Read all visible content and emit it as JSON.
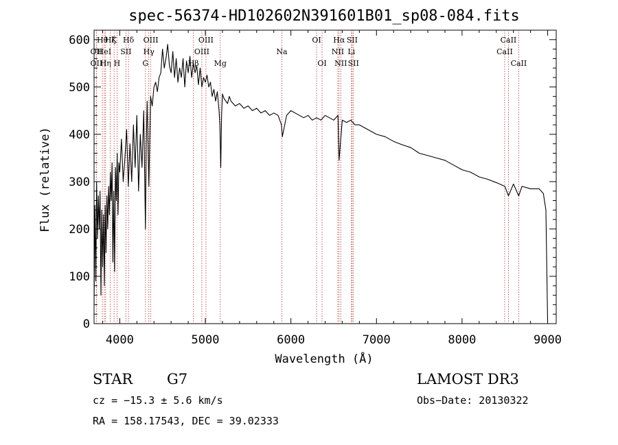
{
  "chart_data": {
    "type": "line",
    "title": "spec-56374-HD102602N391601B01_sp08-084.fits",
    "xlabel": "Wavelength (Å)",
    "ylabel": "Flux (relative)",
    "xlim": [
      3700,
      9100
    ],
    "ylim": [
      0,
      620
    ],
    "xticks": [
      4000,
      5000,
      6000,
      7000,
      8000,
      9000
    ],
    "xtick_labels": [
      "4000",
      "5000",
      "6000",
      "7000",
      "8000",
      "9000"
    ],
    "yticks": [
      0,
      100,
      200,
      300,
      400,
      500,
      600
    ],
    "ytick_labels": [
      "0",
      "100",
      "200",
      "300",
      "400",
      "500",
      "600"
    ],
    "series": [
      {
        "name": "spectrum",
        "x": [
          3700,
          3710,
          3720,
          3730,
          3740,
          3750,
          3760,
          3770,
          3780,
          3790,
          3800,
          3810,
          3820,
          3830,
          3840,
          3850,
          3860,
          3870,
          3880,
          3890,
          3900,
          3910,
          3920,
          3930,
          3940,
          3950,
          3960,
          3970,
          3980,
          3990,
          4000,
          4020,
          4040,
          4060,
          4080,
          4100,
          4120,
          4140,
          4160,
          4180,
          4200,
          4220,
          4240,
          4260,
          4280,
          4300,
          4310,
          4320,
          4340,
          4360,
          4380,
          4400,
          4420,
          4440,
          4460,
          4480,
          4500,
          4520,
          4540,
          4560,
          4580,
          4600,
          4620,
          4640,
          4660,
          4680,
          4700,
          4720,
          4740,
          4760,
          4780,
          4800,
          4820,
          4840,
          4860,
          4880,
          4900,
          4920,
          4940,
          4960,
          4980,
          5000,
          5020,
          5040,
          5060,
          5080,
          5100,
          5120,
          5140,
          5160,
          5170,
          5180,
          5190,
          5200,
          5220,
          5240,
          5260,
          5280,
          5300,
          5350,
          5400,
          5450,
          5500,
          5550,
          5600,
          5650,
          5700,
          5750,
          5800,
          5850,
          5890,
          5900,
          5950,
          6000,
          6050,
          6100,
          6150,
          6200,
          6250,
          6300,
          6350,
          6400,
          6450,
          6500,
          6550,
          6563,
          6600,
          6650,
          6700,
          6750,
          6800,
          6900,
          7000,
          7100,
          7200,
          7300,
          7400,
          7500,
          7600,
          7700,
          7800,
          7900,
          8000,
          8100,
          8200,
          8300,
          8400,
          8500,
          8542,
          8600,
          8662,
          8700,
          8800,
          8900,
          8950,
          8980,
          9000
        ],
        "y": [
          40,
          250,
          90,
          300,
          180,
          270,
          200,
          280,
          60,
          240,
          120,
          230,
          80,
          250,
          150,
          270,
          200,
          290,
          230,
          320,
          260,
          340,
          130,
          280,
          110,
          330,
          260,
          360,
          230,
          340,
          320,
          390,
          300,
          350,
          410,
          290,
          380,
          300,
          420,
          330,
          440,
          280,
          400,
          330,
          450,
          200,
          380,
          470,
          290,
          480,
          460,
          500,
          510,
          490,
          520,
          530,
          580,
          540,
          560,
          590,
          545,
          530,
          575,
          520,
          560,
          510,
          540,
          520,
          560,
          500,
          555,
          530,
          565,
          520,
          550,
          530,
          545,
          505,
          540,
          500,
          520,
          510,
          525,
          500,
          510,
          480,
          495,
          470,
          490,
          450,
          420,
          330,
          440,
          485,
          475,
          470,
          465,
          480,
          470,
          460,
          465,
          455,
          460,
          450,
          455,
          445,
          450,
          440,
          445,
          440,
          420,
          395,
          440,
          450,
          445,
          440,
          435,
          440,
          430,
          435,
          430,
          440,
          435,
          430,
          440,
          345,
          430,
          425,
          430,
          420,
          420,
          410,
          400,
          395,
          385,
          378,
          372,
          360,
          355,
          350,
          345,
          335,
          325,
          320,
          310,
          305,
          298,
          290,
          270,
          295,
          270,
          290,
          285,
          285,
          275,
          240,
          5
        ]
      }
    ],
    "line_markers": [
      {
        "wavelength": 3727,
        "label": "OII",
        "row": 1
      },
      {
        "wavelength": 3727,
        "label": "OII",
        "row": 2
      },
      {
        "wavelength": 3797,
        "label": "Hθ",
        "row": 0
      },
      {
        "wavelength": 3820,
        "label": "HeI",
        "row": 1
      },
      {
        "wavelength": 3835,
        "label": "Hη",
        "row": 2
      },
      {
        "wavelength": 3889,
        "label": "Hζ",
        "row": 0
      },
      {
        "wavelength": 3934,
        "label": "K",
        "row": 0
      },
      {
        "wavelength": 3968,
        "label": "H",
        "row": 2
      },
      {
        "wavelength": 4072,
        "label": "SII",
        "row": 1
      },
      {
        "wavelength": 4102,
        "label": "Hδ",
        "row": 0
      },
      {
        "wavelength": 4300,
        "label": "G",
        "row": 2
      },
      {
        "wavelength": 4340,
        "label": "Hγ",
        "row": 1
      },
      {
        "wavelength": 4363,
        "label": "OIII",
        "row": 0
      },
      {
        "wavelength": 4861,
        "label": "Hβ",
        "row": 2
      },
      {
        "wavelength": 4959,
        "label": "OIII",
        "row": 1
      },
      {
        "wavelength": 5007,
        "label": "OIII",
        "row": 0
      },
      {
        "wavelength": 5175,
        "label": "Mg",
        "row": 2
      },
      {
        "wavelength": 5894,
        "label": "Na",
        "row": 1
      },
      {
        "wavelength": 6300,
        "label": "OI",
        "row": 0
      },
      {
        "wavelength": 6364,
        "label": "OI",
        "row": 2
      },
      {
        "wavelength": 6548,
        "label": "NII",
        "row": 1
      },
      {
        "wavelength": 6563,
        "label": "Hα",
        "row": 0
      },
      {
        "wavelength": 6583,
        "label": "NII",
        "row": 2
      },
      {
        "wavelength": 6707,
        "label": "Li",
        "row": 1
      },
      {
        "wavelength": 6716,
        "label": "SII",
        "row": 0
      },
      {
        "wavelength": 6731,
        "label": "SII",
        "row": 2
      },
      {
        "wavelength": 8498,
        "label": "CaII",
        "row": 1
      },
      {
        "wavelength": 8542,
        "label": "CaII",
        "row": 0
      },
      {
        "wavelength": 8662,
        "label": "CaII",
        "row": 2
      }
    ]
  },
  "info": {
    "object_class": "STAR",
    "subclass": "G7",
    "survey": "LAMOST DR3",
    "cz": "cz = −15.3 ± 5.6 km/s",
    "obs_date": "Obs−Date: 20130322",
    "coords": "RA = 158.17543, DEC =  39.02333"
  }
}
